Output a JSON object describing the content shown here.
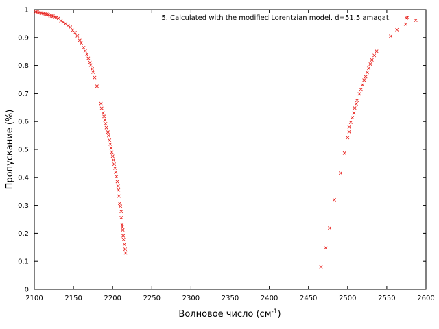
{
  "chart_data": {
    "type": "scatter",
    "xlabel": "Волновое число (см",
    "xlabel_sup": "-1",
    "xlabel_close": ")",
    "ylabel": "Пропускание (%)",
    "xlim": [
      2100,
      2600
    ],
    "ylim": [
      0,
      1
    ],
    "xticks": [
      2100,
      2150,
      2200,
      2250,
      2300,
      2350,
      2400,
      2450,
      2500,
      2550,
      2600
    ],
    "yticks": [
      0,
      0.1,
      0.2,
      0.3,
      0.4,
      0.5,
      0.6,
      0.7,
      0.8,
      0.9,
      1
    ],
    "xtick_labels": [
      "2100",
      "2150",
      "2200",
      "2250",
      "2300",
      "2350",
      "2400",
      "2450",
      "2500",
      "2550",
      "2600"
    ],
    "ytick_labels": [
      "0",
      "0.1",
      "0.2",
      "0.3",
      "0.4",
      "0.5",
      "0.6",
      "0.7",
      "0.8",
      "0.9",
      "1"
    ],
    "grid": false,
    "legend_position": "top-right",
    "marker_color": "#e8231f",
    "series": [
      {
        "name": "5. Calculated with the modified Lorentzian model. d=51.5 amagat.",
        "points": [
          [
            2102,
            0.992
          ],
          [
            2104,
            0.991
          ],
          [
            2106,
            0.99
          ],
          [
            2108,
            0.988
          ],
          [
            2110,
            0.987
          ],
          [
            2112,
            0.986
          ],
          [
            2114,
            0.984
          ],
          [
            2116,
            0.983
          ],
          [
            2118,
            0.981
          ],
          [
            2120,
            0.978
          ],
          [
            2122,
            0.977
          ],
          [
            2124,
            0.976
          ],
          [
            2126,
            0.974
          ],
          [
            2128,
            0.972
          ],
          [
            2131,
            0.969
          ],
          [
            2134,
            0.96
          ],
          [
            2137,
            0.955
          ],
          [
            2140,
            0.95
          ],
          [
            2143,
            0.943
          ],
          [
            2146,
            0.937
          ],
          [
            2149,
            0.926
          ],
          [
            2152,
            0.918
          ],
          [
            2155,
            0.906
          ],
          [
            2158,
            0.89
          ],
          [
            2160,
            0.88
          ],
          [
            2163,
            0.864
          ],
          [
            2165,
            0.852
          ],
          [
            2167,
            0.84
          ],
          [
            2169,
            0.826
          ],
          [
            2171,
            0.811
          ],
          [
            2172,
            0.801
          ],
          [
            2174,
            0.788
          ],
          [
            2175,
            0.776
          ],
          [
            2177,
            0.757
          ],
          [
            2180,
            0.726
          ],
          [
            2185,
            0.664
          ],
          [
            2186,
            0.647
          ],
          [
            2188,
            0.63
          ],
          [
            2189,
            0.618
          ],
          [
            2190,
            0.605
          ],
          [
            2191,
            0.592
          ],
          [
            2192,
            0.578
          ],
          [
            2194,
            0.562
          ],
          [
            2195,
            0.549
          ],
          [
            2196,
            0.533
          ],
          [
            2197,
            0.519
          ],
          [
            2198,
            0.505
          ],
          [
            2199,
            0.49
          ],
          [
            2200,
            0.476
          ],
          [
            2201,
            0.462
          ],
          [
            2202,
            0.447
          ],
          [
            2203,
            0.433
          ],
          [
            2204,
            0.418
          ],
          [
            2205,
            0.403
          ],
          [
            2206,
            0.385
          ],
          [
            2207,
            0.369
          ],
          [
            2207.5,
            0.355
          ],
          [
            2208,
            0.333
          ],
          [
            2209,
            0.307
          ],
          [
            2210,
            0.297
          ],
          [
            2211,
            0.278
          ],
          [
            2211,
            0.256
          ],
          [
            2212,
            0.231
          ],
          [
            2212.5,
            0.223
          ],
          [
            2213,
            0.212
          ],
          [
            2213.5,
            0.191
          ],
          [
            2214,
            0.178
          ],
          [
            2215,
            0.16
          ],
          [
            2216,
            0.143
          ],
          [
            2216.5,
            0.13
          ],
          [
            2466,
            0.08
          ],
          [
            2472,
            0.148
          ],
          [
            2477,
            0.219
          ],
          [
            2483,
            0.32
          ],
          [
            2491,
            0.415
          ],
          [
            2496,
            0.487
          ],
          [
            2500,
            0.542
          ],
          [
            2502,
            0.563
          ],
          [
            2502,
            0.58
          ],
          [
            2504,
            0.597
          ],
          [
            2506,
            0.614
          ],
          [
            2508,
            0.63
          ],
          [
            2509,
            0.648
          ],
          [
            2511,
            0.663
          ],
          [
            2512,
            0.675
          ],
          [
            2515,
            0.699
          ],
          [
            2517,
            0.714
          ],
          [
            2519,
            0.731
          ],
          [
            2521,
            0.748
          ],
          [
            2523,
            0.76
          ],
          [
            2525,
            0.775
          ],
          [
            2527,
            0.79
          ],
          [
            2529,
            0.805
          ],
          [
            2531,
            0.82
          ],
          [
            2534,
            0.836
          ],
          [
            2537,
            0.851
          ],
          [
            2555,
            0.905
          ],
          [
            2563,
            0.928
          ],
          [
            2574,
            0.948
          ],
          [
            2575,
            0.97
          ],
          [
            2587,
            0.962
          ]
        ]
      }
    ]
  }
}
